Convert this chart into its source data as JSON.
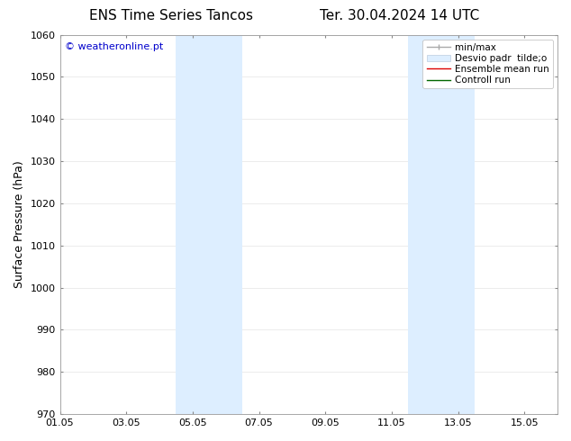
{
  "title_left": "ENS Time Series Tancos",
  "title_right": "Ter. 30.04.2024 14 UTC",
  "ylabel": "Surface Pressure (hPa)",
  "ylim": [
    970,
    1060
  ],
  "yticks": [
    970,
    980,
    990,
    1000,
    1010,
    1020,
    1030,
    1040,
    1050,
    1060
  ],
  "xtick_labels": [
    "01.05",
    "03.05",
    "05.05",
    "07.05",
    "09.05",
    "11.05",
    "13.05",
    "15.05"
  ],
  "xtick_positions": [
    0,
    2,
    4,
    6,
    8,
    10,
    12,
    14
  ],
  "xlim": [
    0,
    15
  ],
  "shaded_bands": [
    {
      "x_start": 3.5,
      "x_end": 4.5,
      "color": "#ddeeff"
    },
    {
      "x_start": 4.5,
      "x_end": 5.5,
      "color": "#ddeeff"
    },
    {
      "x_start": 10.5,
      "x_end": 11.5,
      "color": "#ddeeff"
    },
    {
      "x_start": 11.5,
      "x_end": 12.5,
      "color": "#ddeeff"
    }
  ],
  "watermark_text": "© weatheronline.pt",
  "watermark_color": "#0000cc",
  "background_color": "#ffffff",
  "title_fontsize": 11,
  "label_fontsize": 9,
  "tick_fontsize": 8,
  "legend_fontsize": 7.5
}
